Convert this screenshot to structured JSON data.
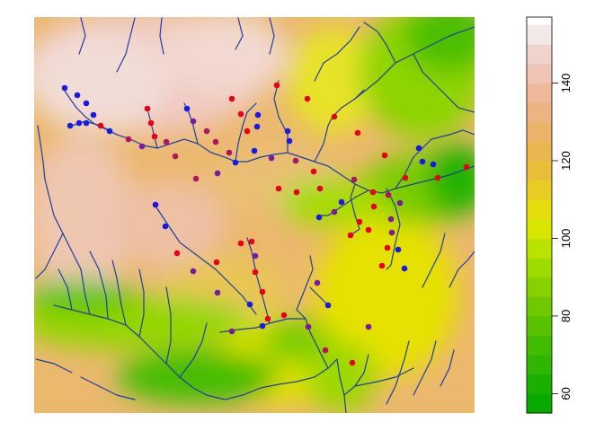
{
  "chart_data": {
    "type": "heatmap",
    "title": "",
    "xlabel": "",
    "ylabel": "",
    "legend": {
      "placement": "right",
      "orientation": "vertical",
      "range": [
        55,
        157
      ],
      "step": 5,
      "ticks": [
        60,
        80,
        100,
        120,
        140
      ],
      "tick_labels": [
        "60",
        "80",
        "100",
        "120",
        "140"
      ],
      "palette": "terrain",
      "colors": [
        "#00a600",
        "#24b300",
        "#4cbf00",
        "#7acc00",
        "#ade000",
        "#e6e600",
        "#e8c32e",
        "#ebb25e",
        "#edb48e",
        "#f0c9c0",
        "#f2f2f2"
      ]
    },
    "features": {
      "streams": {
        "color": "#1f3f9f"
      },
      "site_colors": [
        "#e8001c",
        "#b01563",
        "#7a1aa3",
        "#1a1ae6"
      ]
    }
  }
}
